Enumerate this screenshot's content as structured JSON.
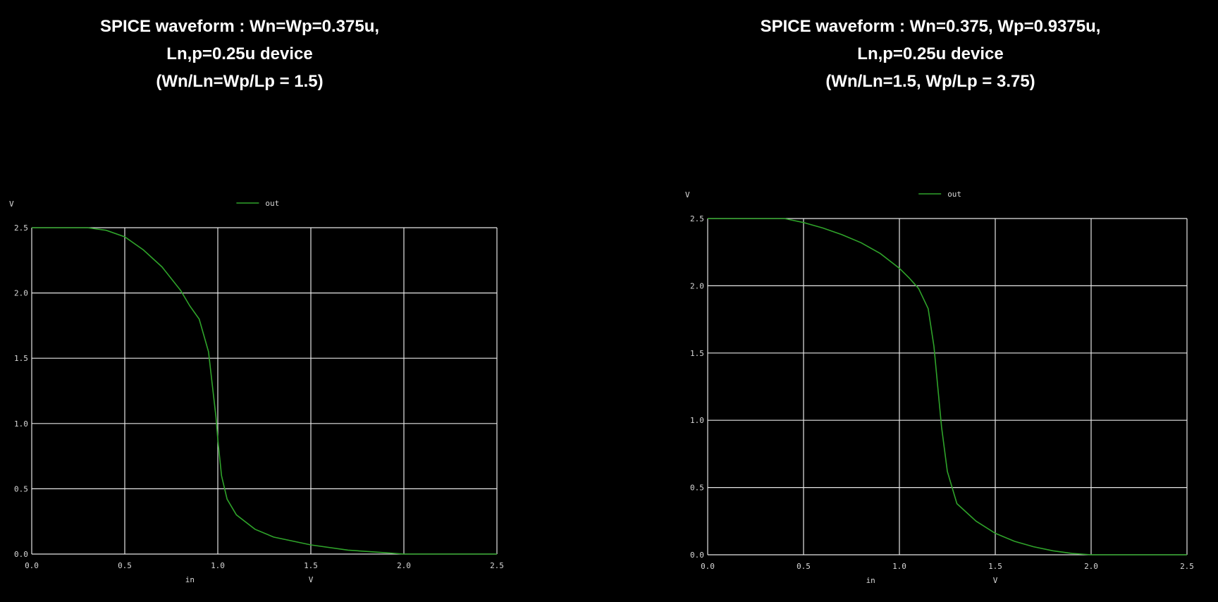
{
  "charts": [
    {
      "title_lines": [
        "SPICE waveform : Wn=Wp=0.375u,",
        "Ln,p=0.25u device",
        "(Wn/Ln=Wp/Lp = 1.5)"
      ]
    },
    {
      "title_lines": [
        "SPICE waveform : Wn=0.375, Wp=0.9375u,",
        "Ln,p=0.25u device",
        "(Wn/Ln=1.5, Wp/Lp = 3.75)"
      ]
    }
  ],
  "colors": {
    "background": "#000000",
    "grid": "#e6e6e6",
    "trace": "#2fa32a",
    "text": "#d8d8d8"
  },
  "chart_data": [
    {
      "type": "line",
      "title": "SPICE waveform : Wn=Wp=0.375u, Ln,p=0.25u device (Wn/Ln=Wp/Lp = 1.5)",
      "ylabel": "V",
      "xlabel_name": "in",
      "xlabel_unit": "V",
      "xlim": [
        0,
        2.5
      ],
      "ylim": [
        0,
        2.5
      ],
      "xticks": [
        "0.0",
        "0.5",
        "1.0",
        "1.5",
        "2.0",
        "2.5"
      ],
      "yticks": [
        "0.0",
        "0.5",
        "1.0",
        "1.5",
        "2.0",
        "2.5"
      ],
      "grid": true,
      "legend_position": "top-center",
      "series": [
        {
          "name": "out",
          "x": [
            0,
            0.3,
            0.4,
            0.5,
            0.6,
            0.7,
            0.8,
            0.85,
            0.9,
            0.95,
            0.97,
            0.99,
            1.0,
            1.02,
            1.05,
            1.1,
            1.2,
            1.3,
            1.5,
            1.7,
            1.9,
            2.0,
            2.5
          ],
          "y": [
            2.5,
            2.5,
            2.48,
            2.43,
            2.33,
            2.2,
            2.02,
            1.9,
            1.8,
            1.55,
            1.3,
            1.05,
            0.88,
            0.6,
            0.42,
            0.3,
            0.19,
            0.13,
            0.07,
            0.03,
            0.01,
            0.0,
            0.0
          ]
        }
      ]
    },
    {
      "type": "line",
      "title": "SPICE waveform : Wn=0.375, Wp=0.9375u, Ln,p=0.25u device (Wn/Ln=1.5, Wp/Lp = 3.75)",
      "ylabel": "V",
      "xlabel_name": "in",
      "xlabel_unit": "V",
      "xlim": [
        0,
        2.5
      ],
      "ylim": [
        0,
        2.5
      ],
      "xticks": [
        "0.0",
        "0.5",
        "1.0",
        "1.5",
        "2.0",
        "2.5"
      ],
      "yticks": [
        "0.0",
        "0.5",
        "1.0",
        "1.5",
        "2.0",
        "2.5"
      ],
      "grid": true,
      "legend_position": "top-center",
      "series": [
        {
          "name": "out",
          "x": [
            0,
            0.4,
            0.5,
            0.6,
            0.7,
            0.8,
            0.9,
            1.0,
            1.05,
            1.1,
            1.15,
            1.18,
            1.2,
            1.22,
            1.25,
            1.3,
            1.4,
            1.5,
            1.6,
            1.7,
            1.8,
            1.9,
            2.0,
            2.5
          ],
          "y": [
            2.5,
            2.5,
            2.47,
            2.43,
            2.38,
            2.32,
            2.24,
            2.13,
            2.06,
            1.98,
            1.83,
            1.55,
            1.25,
            0.95,
            0.62,
            0.38,
            0.25,
            0.16,
            0.1,
            0.06,
            0.03,
            0.01,
            0.0,
            0.0
          ]
        }
      ]
    }
  ]
}
